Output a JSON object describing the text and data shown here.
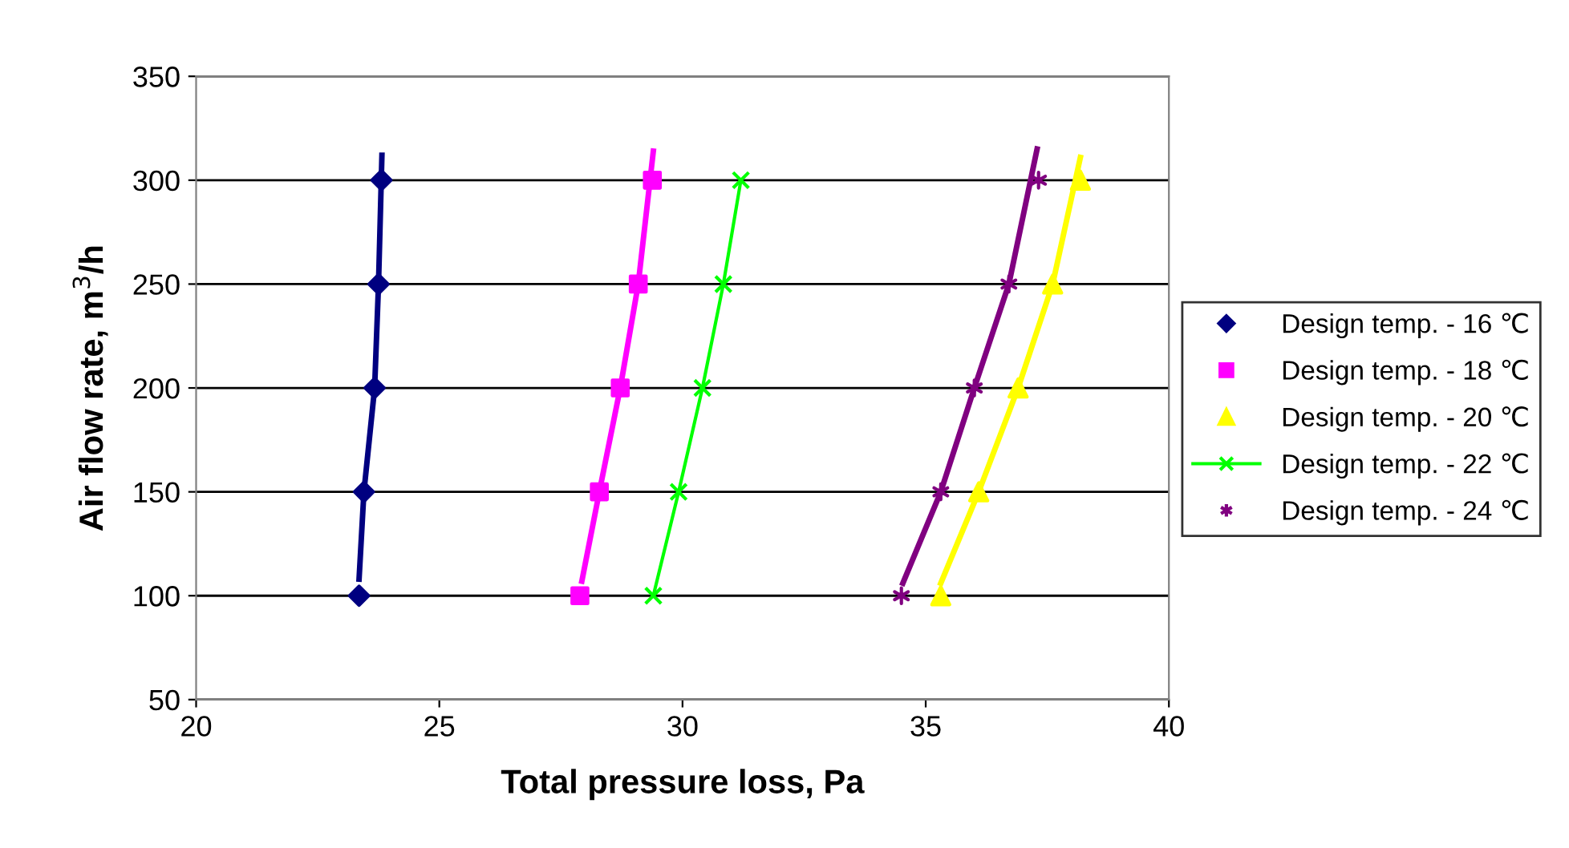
{
  "chart_data": {
    "type": "scatter",
    "xlabel": "Total pressure loss, Pa",
    "ylabel": "Air flow rate, m$^{3}$/h",
    "xlim": [
      20,
      40
    ],
    "xticks": [
      20,
      25,
      30,
      35,
      40
    ],
    "ylim": [
      50,
      350
    ],
    "yticks": [
      50,
      100,
      150,
      200,
      250,
      300,
      350
    ],
    "grid": "y",
    "legend": "right",
    "series": [
      {
        "name": "Design temp. - 16 ℃",
        "marker": "diamond",
        "color": "#000080",
        "x": [
          23.35,
          23.45,
          23.67,
          23.75,
          23.81
        ],
        "values": [
          100,
          150,
          200,
          250,
          300
        ]
      },
      {
        "name": "Design temp. - 18 ℃",
        "marker": "square",
        "color": "#ff00ff",
        "x": [
          27.89,
          28.29,
          28.72,
          29.09,
          29.38
        ],
        "values": [
          100,
          150,
          200,
          250,
          300
        ]
      },
      {
        "name": "Design temp. - 20 ℃",
        "marker": "triangle",
        "color": "#ffff00",
        "x": [
          35.31,
          36.09,
          36.9,
          37.61,
          38.18
        ],
        "values": [
          100,
          150,
          200,
          250,
          300
        ]
      },
      {
        "name": "Design temp. - 22 ℃",
        "type": "line",
        "marker": "cross",
        "color": "#00ff00",
        "x": [
          29.4,
          29.92,
          30.41,
          30.84,
          31.2
        ],
        "values": [
          100,
          150,
          200,
          250,
          300
        ]
      },
      {
        "name": "Design temp. - 24 ℃",
        "marker": "cross",
        "color": "#800080",
        "x": [
          34.5,
          35.31,
          36.0,
          36.71,
          37.32
        ],
        "values": [
          100,
          150,
          200,
          250,
          300
        ]
      },
      {
        "type": "line",
        "marker": "none",
        "color": "#000080",
        "x": [
          23.35,
          23.45,
          23.67,
          23.75,
          23.82
        ],
        "values": [
          108,
          150,
          200,
          250,
          312
        ]
      },
      {
        "type": "line",
        "marker": "none",
        "color": "#ff00ff",
        "x": [
          27.93,
          28.29,
          28.72,
          29.09,
          29.4
        ],
        "values": [
          107,
          150,
          200,
          250,
          314
        ]
      },
      {
        "type": "line",
        "marker": "none",
        "color": "#ffff00",
        "x": [
          35.31,
          36.09,
          36.9,
          37.61,
          38.18
        ],
        "values": [
          106,
          150,
          200,
          250,
          311
        ]
      },
      {
        "type": "line",
        "marker": "none",
        "color": "#800080",
        "x": [
          34.53,
          35.31,
          36.0,
          36.71,
          37.29
        ],
        "values": [
          106,
          150,
          200,
          250,
          315
        ]
      }
    ]
  }
}
